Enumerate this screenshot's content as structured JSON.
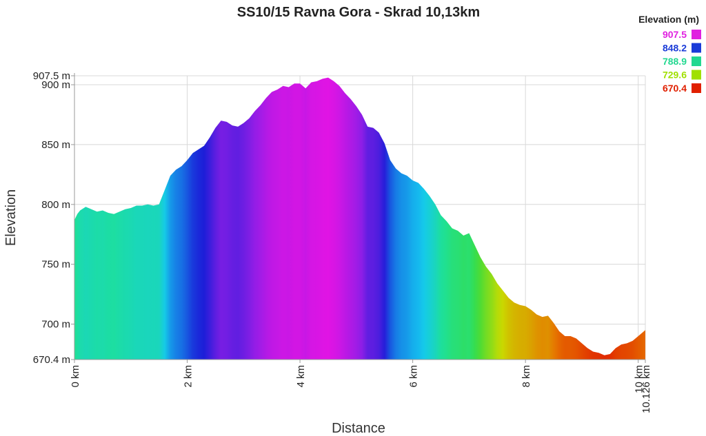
{
  "chart_data": {
    "type": "area",
    "title": "SS10/15 Ravna Gora - Skrad 10,13km",
    "xlabel": "Distance",
    "ylabel": "Elevation",
    "xlim": [
      0,
      10.126
    ],
    "ylim": [
      670.4,
      907.5
    ],
    "x_ticks": [
      {
        "value": 0,
        "label": "0 km"
      },
      {
        "value": 2,
        "label": "2 km"
      },
      {
        "value": 4,
        "label": "4 km"
      },
      {
        "value": 6,
        "label": "6 km"
      },
      {
        "value": 8,
        "label": "8 km"
      },
      {
        "value": 10,
        "label": "10 km"
      },
      {
        "value": 10.126,
        "label": "10.126 km"
      }
    ],
    "y_ticks": [
      {
        "value": 670.4,
        "label": "670.4 m"
      },
      {
        "value": 700,
        "label": "700 m"
      },
      {
        "value": 750,
        "label": "750 m"
      },
      {
        "value": 800,
        "label": "800 m"
      },
      {
        "value": 850,
        "label": "850 m"
      },
      {
        "value": 900,
        "label": "900 m"
      },
      {
        "value": 907.5,
        "label": "907.5 m"
      }
    ],
    "grid": true,
    "legend": {
      "title": "Elevation (m)",
      "placement": "top-right",
      "entries": [
        {
          "label": "907.5",
          "color": "#e020e0"
        },
        {
          "label": "848.2",
          "color": "#1a3bd8"
        },
        {
          "label": "788.9",
          "color": "#22d890"
        },
        {
          "label": "729.6",
          "color": "#a0e000"
        },
        {
          "label": "670.4",
          "color": "#e02000"
        }
      ]
    },
    "series": [
      {
        "x": [
          0,
          0.05,
          0.1,
          0.2,
          0.3,
          0.4,
          0.5,
          0.6,
          0.7,
          0.8,
          0.9,
          1.0,
          1.1,
          1.2,
          1.3,
          1.4,
          1.5,
          1.6,
          1.7,
          1.8,
          1.9,
          2.0,
          2.1,
          2.2,
          2.3,
          2.4,
          2.5,
          2.6,
          2.7,
          2.8,
          2.9,
          3.0,
          3.1,
          3.2,
          3.3,
          3.4,
          3.5,
          3.6,
          3.7,
          3.8,
          3.9,
          4.0,
          4.1,
          4.2,
          4.3,
          4.4,
          4.5,
          4.6,
          4.7,
          4.8,
          4.9,
          5.0,
          5.1,
          5.2,
          5.3,
          5.4,
          5.5,
          5.6,
          5.7,
          5.8,
          5.9,
          6.0,
          6.1,
          6.2,
          6.3,
          6.4,
          6.5,
          6.6,
          6.7,
          6.8,
          6.9,
          7.0,
          7.1,
          7.2,
          7.3,
          7.4,
          7.5,
          7.6,
          7.7,
          7.8,
          7.9,
          8.0,
          8.1,
          8.2,
          8.3,
          8.4,
          8.5,
          8.6,
          8.7,
          8.8,
          8.9,
          9.0,
          9.1,
          9.2,
          9.3,
          9.4,
          9.5,
          9.6,
          9.7,
          9.8,
          9.9,
          10.0,
          10.126
        ],
        "y": [
          787,
          792,
          795,
          798,
          796,
          794,
          795,
          793,
          792,
          794,
          796,
          797,
          799,
          799,
          800,
          799,
          800,
          812,
          824,
          829,
          832,
          837,
          843,
          846,
          849,
          856,
          864,
          870,
          869,
          866,
          865,
          868,
          872,
          878,
          883,
          889,
          894,
          896,
          899,
          898,
          901,
          901,
          897,
          902,
          903,
          905,
          906,
          903,
          899,
          893,
          888,
          882,
          875,
          865,
          864,
          860,
          851,
          837,
          830,
          826,
          824,
          820,
          818,
          813,
          807,
          800,
          791,
          786,
          780,
          778,
          774,
          776,
          766,
          756,
          748,
          742,
          734,
          728,
          722,
          718,
          716,
          715,
          712,
          708,
          706,
          707,
          701,
          694,
          690,
          690,
          688,
          684,
          680,
          677,
          676,
          674,
          675,
          680,
          683,
          684,
          686,
          690,
          695
        ]
      }
    ]
  }
}
